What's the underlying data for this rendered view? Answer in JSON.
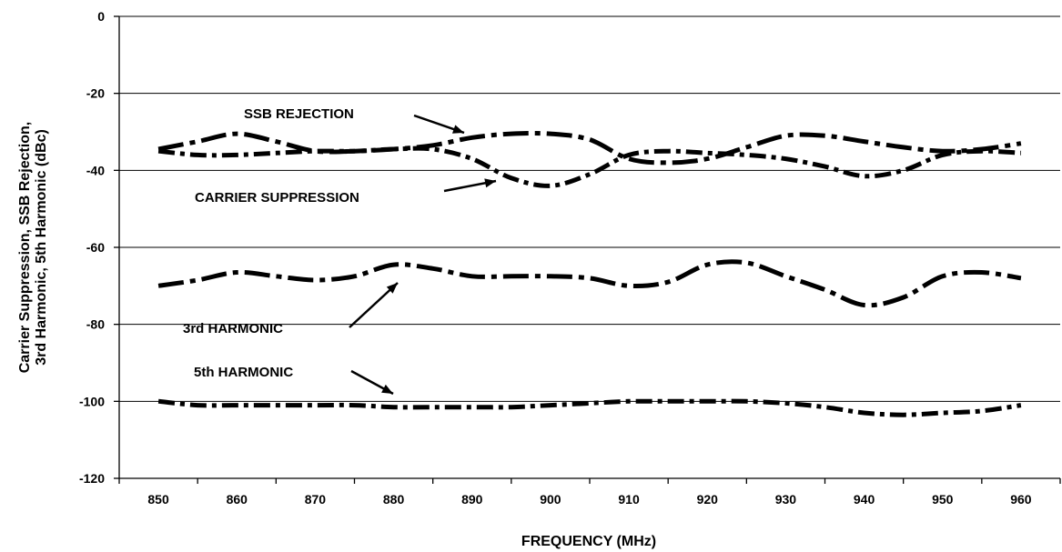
{
  "chart_data": {
    "type": "line",
    "xlabel": "FREQUENCY (MHz)",
    "ylabel": [
      "Carrier Suppression, SSB Rejection,",
      "3rd Harmonic, 5th Harmonic (dBc)"
    ],
    "xlim": [
      845,
      965
    ],
    "ylim": [
      -120,
      0
    ],
    "x_ticks": [
      850,
      860,
      870,
      880,
      890,
      900,
      910,
      920,
      930,
      940,
      950,
      960
    ],
    "y_ticks": [
      0,
      -20,
      -40,
      -60,
      -80,
      -100,
      -120
    ],
    "grid": "horizontal",
    "series": [
      {
        "name": "SSB REJECTION",
        "dash": "long-dash-dot",
        "points": [
          [
            850,
            -34.5
          ],
          [
            855,
            -32.5
          ],
          [
            860,
            -30.5
          ],
          [
            865,
            -32.5
          ],
          [
            870,
            -35
          ],
          [
            875,
            -35
          ],
          [
            880,
            -34.5
          ],
          [
            885,
            -33.5
          ],
          [
            890,
            -31.5
          ],
          [
            895,
            -30.5
          ],
          [
            900,
            -30.5
          ],
          [
            905,
            -32
          ],
          [
            910,
            -37
          ],
          [
            915,
            -38
          ],
          [
            920,
            -37
          ],
          [
            925,
            -34
          ],
          [
            930,
            -31
          ],
          [
            935,
            -31
          ],
          [
            940,
            -32.5
          ],
          [
            945,
            -34
          ],
          [
            950,
            -35
          ],
          [
            955,
            -34.5
          ],
          [
            960,
            -33
          ]
        ]
      },
      {
        "name": "CARRIER SUPPRESSION",
        "dash": "dash-dot",
        "points": [
          [
            850,
            -35
          ],
          [
            855,
            -36
          ],
          [
            860,
            -36
          ],
          [
            865,
            -35.5
          ],
          [
            870,
            -35
          ],
          [
            875,
            -35
          ],
          [
            880,
            -34.5
          ],
          [
            885,
            -34.5
          ],
          [
            890,
            -37
          ],
          [
            895,
            -42
          ],
          [
            900,
            -44
          ],
          [
            905,
            -41
          ],
          [
            910,
            -36
          ],
          [
            915,
            -35
          ],
          [
            920,
            -35.5
          ],
          [
            925,
            -36
          ],
          [
            930,
            -37
          ],
          [
            935,
            -39
          ],
          [
            940,
            -41.5
          ],
          [
            945,
            -40
          ],
          [
            950,
            -36
          ],
          [
            955,
            -35
          ],
          [
            960,
            -35.5
          ]
        ]
      },
      {
        "name": "3rd HARMONIC",
        "dash": "long-dash-dot",
        "points": [
          [
            850,
            -70
          ],
          [
            855,
            -68.5
          ],
          [
            860,
            -66.5
          ],
          [
            865,
            -67.5
          ],
          [
            870,
            -68.5
          ],
          [
            875,
            -67.5
          ],
          [
            880,
            -64.5
          ],
          [
            885,
            -65.5
          ],
          [
            890,
            -67.5
          ],
          [
            895,
            -67.5
          ],
          [
            900,
            -67.5
          ],
          [
            905,
            -68
          ],
          [
            910,
            -70
          ],
          [
            915,
            -69
          ],
          [
            920,
            -64.5
          ],
          [
            925,
            -64
          ],
          [
            930,
            -67.5
          ],
          [
            935,
            -71
          ],
          [
            940,
            -75
          ],
          [
            945,
            -73
          ],
          [
            950,
            -67.5
          ],
          [
            955,
            -66.5
          ],
          [
            960,
            -68
          ]
        ]
      },
      {
        "name": "5th HARMONIC",
        "dash": "dash-dot",
        "points": [
          [
            850,
            -100
          ],
          [
            855,
            -101
          ],
          [
            860,
            -101
          ],
          [
            865,
            -101
          ],
          [
            870,
            -101
          ],
          [
            875,
            -101
          ],
          [
            880,
            -101.5
          ],
          [
            885,
            -101.5
          ],
          [
            890,
            -101.5
          ],
          [
            895,
            -101.5
          ],
          [
            900,
            -101
          ],
          [
            905,
            -100.5
          ],
          [
            910,
            -100
          ],
          [
            915,
            -100
          ],
          [
            920,
            -100
          ],
          [
            925,
            -100
          ],
          [
            930,
            -100.5
          ],
          [
            935,
            -101.5
          ],
          [
            940,
            -103
          ],
          [
            945,
            -103.5
          ],
          [
            950,
            -103
          ],
          [
            955,
            -102.5
          ],
          [
            960,
            -101
          ]
        ]
      }
    ],
    "annotations": [
      {
        "text": "SSB REJECTION",
        "series": "SSB REJECTION",
        "points_to": [
          887,
          -31.5
        ]
      },
      {
        "text": "CARRIER SUPPRESSION",
        "series": "CARRIER SUPPRESSION",
        "points_to": [
          893,
          -41.5
        ]
      },
      {
        "text": "3rd HARMONIC",
        "series": "3rd HARMONIC",
        "points_to": [
          881,
          -64.5
        ]
      },
      {
        "text": "5th HARMONIC",
        "series": "5th HARMONIC",
        "points_to": [
          881,
          -101.5
        ]
      }
    ]
  }
}
